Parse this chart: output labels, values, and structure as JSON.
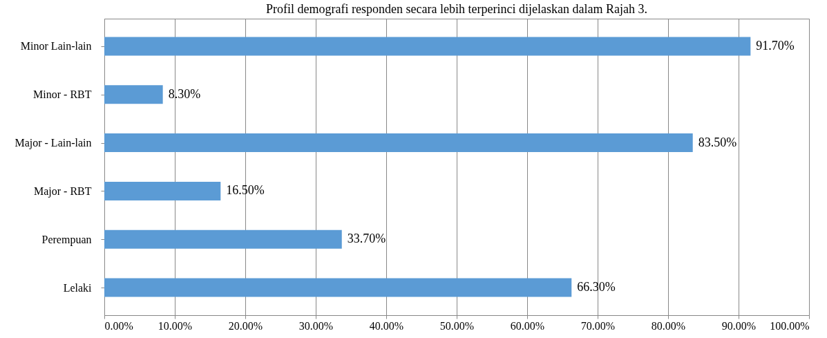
{
  "chart_data": {
    "type": "bar",
    "orientation": "horizontal",
    "title": "Profil demografi responden secara lebih terperinci dijelaskan dalam Rajah 3.",
    "categories": [
      "Minor Lain-lain",
      "Minor - RBT",
      "Major - Lain-lain",
      "Major - RBT",
      "Perempuan",
      "Lelaki"
    ],
    "values": [
      91.7,
      8.3,
      83.5,
      16.5,
      33.7,
      66.3
    ],
    "value_labels": [
      "91.70%",
      "8.30%",
      "83.50%",
      "16.50%",
      "33.70%",
      "66.30%"
    ],
    "color": "#5b9bd5",
    "xlim": [
      0,
      100
    ],
    "xticks": [
      {
        "value": 0,
        "label": "0.00%"
      },
      {
        "value": 10,
        "label": "10.00%"
      },
      {
        "value": 20,
        "label": "20.00%"
      },
      {
        "value": 30,
        "label": "30.00%"
      },
      {
        "value": 40,
        "label": "40.00%"
      },
      {
        "value": 50,
        "label": "50.00%"
      },
      {
        "value": 60,
        "label": "60.00%"
      },
      {
        "value": 70,
        "label": "70.00%"
      },
      {
        "value": 80,
        "label": "80.00%"
      },
      {
        "value": 90,
        "label": "90.00%"
      },
      {
        "value": 100,
        "label": "100.00%"
      }
    ],
    "grid": "x"
  }
}
